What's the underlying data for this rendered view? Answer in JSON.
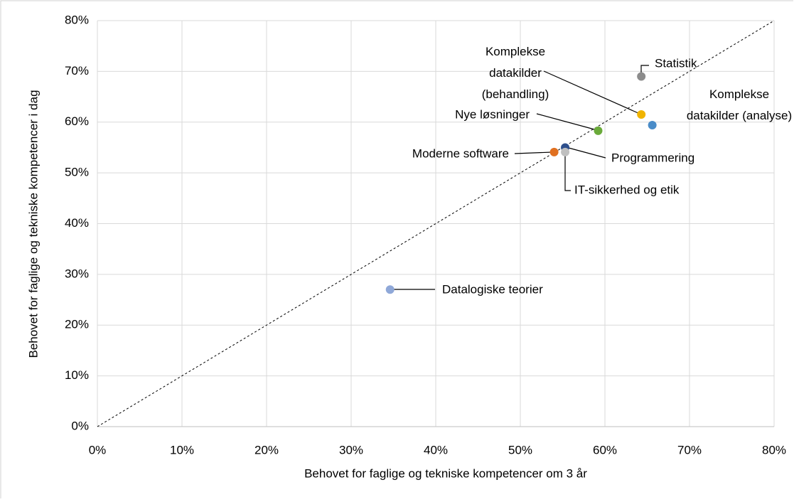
{
  "chart_data": {
    "type": "scatter",
    "xlabel": "Behovet for faglige og tekniske kompetencer om 3 år",
    "ylabel": "Behovet for faglige og tekniske kompetencer i dag",
    "xlim": [
      0,
      80
    ],
    "ylim": [
      0,
      80
    ],
    "xticks": [
      {
        "value": 0,
        "label": "0%"
      },
      {
        "value": 10,
        "label": "10%"
      },
      {
        "value": 20,
        "label": "20%"
      },
      {
        "value": 30,
        "label": "30%"
      },
      {
        "value": 40,
        "label": "40%"
      },
      {
        "value": 50,
        "label": "50%"
      },
      {
        "value": 60,
        "label": "60%"
      },
      {
        "value": 70,
        "label": "70%"
      },
      {
        "value": 80,
        "label": "80%"
      }
    ],
    "yticks": [
      {
        "value": 0,
        "label": "0%"
      },
      {
        "value": 10,
        "label": "10%"
      },
      {
        "value": 20,
        "label": "20%"
      },
      {
        "value": 30,
        "label": "30%"
      },
      {
        "value": 40,
        "label": "40%"
      },
      {
        "value": 50,
        "label": "50%"
      },
      {
        "value": 60,
        "label": "60%"
      },
      {
        "value": 70,
        "label": "70%"
      },
      {
        "value": 80,
        "label": "80%"
      }
    ],
    "grid": true,
    "series": [
      {
        "name": "Statistik",
        "color": "#8c8c8c",
        "x": [
          64.3
        ],
        "values": [
          69.0
        ]
      },
      {
        "name": "Komplekse datakilder (behandling)",
        "color": "#f0b400",
        "x": [
          64.3
        ],
        "values": [
          61.5
        ]
      },
      {
        "name": "Komplekse datakilder (analyse)",
        "color": "#4a8cc8",
        "x": [
          65.6
        ],
        "values": [
          59.4
        ]
      },
      {
        "name": "Nye løsninger",
        "color": "#6aaa3a",
        "x": [
          59.2
        ],
        "values": [
          58.3
        ]
      },
      {
        "name": "Programmering",
        "color": "#2e4f8c",
        "x": [
          55.3
        ],
        "values": [
          55.0
        ]
      },
      {
        "name": "Moderne software",
        "color": "#e07020",
        "x": [
          54.0
        ],
        "values": [
          54.1
        ]
      },
      {
        "name": "IT-sikkerhed og etik",
        "color": "#c0c0c0",
        "x": [
          55.3
        ],
        "values": [
          54.1
        ]
      },
      {
        "name": "Datalogiske teorier",
        "color": "#8fa8d8",
        "x": [
          34.6
        ],
        "values": [
          27.0
        ]
      }
    ]
  }
}
